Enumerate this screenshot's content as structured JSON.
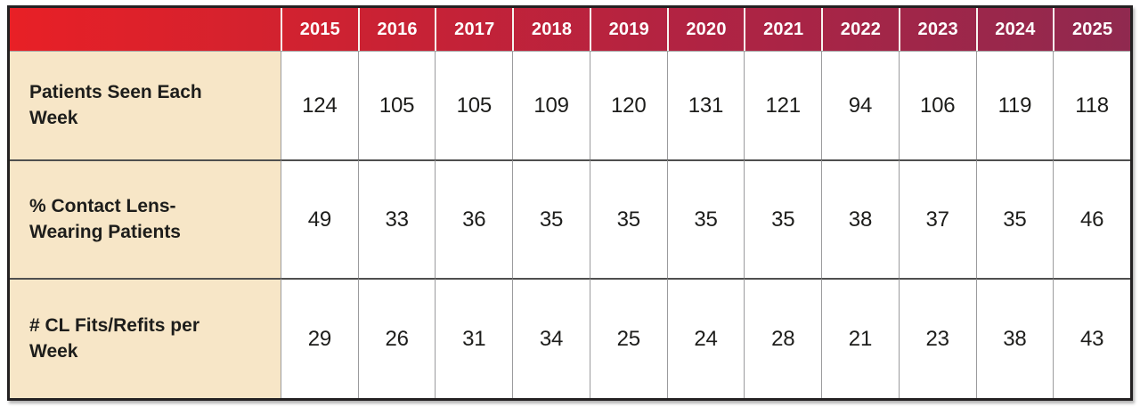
{
  "header": {
    "years": [
      "2015",
      "2016",
      "2017",
      "2018",
      "2019",
      "2020",
      "2021",
      "2022",
      "2023",
      "2024",
      "2025"
    ]
  },
  "rows": [
    {
      "label": "Patients Seen Each Week",
      "values": [
        "124",
        "105",
        "105",
        "109",
        "120",
        "131",
        "121",
        "94",
        "106",
        "119",
        "118"
      ]
    },
    {
      "label": "% Contact Lens-Wearing Patients",
      "values": [
        "49",
        "33",
        "36",
        "35",
        "35",
        "35",
        "35",
        "38",
        "37",
        "35",
        "46"
      ]
    },
    {
      "label": "# CL Fits/Refits per Week",
      "values": [
        "29",
        "26",
        "31",
        "34",
        "25",
        "24",
        "28",
        "21",
        "23",
        "38",
        "43"
      ]
    }
  ],
  "colors": {
    "header_gradient_start": "#e82026",
    "header_gradient_end": "#90294f",
    "header_text": "#ffffff",
    "label_column_bg": "#f7e6c7",
    "row_bg_white": "#ffffff",
    "row_bg_gray": "#e2e2e4",
    "body_text": "#1d1d1b",
    "outer_border": "#242122",
    "row_separator": "#4f4f4f",
    "column_separator": "#9b9b9d"
  },
  "chart_data": {
    "type": "table",
    "categories": [
      "2015",
      "2016",
      "2017",
      "2018",
      "2019",
      "2020",
      "2021",
      "2022",
      "2023",
      "2024",
      "2025"
    ],
    "series": [
      {
        "name": "Patients Seen Each Week",
        "values": [
          124,
          105,
          105,
          109,
          120,
          131,
          121,
          94,
          106,
          119,
          118
        ]
      },
      {
        "name": "% Contact Lens-Wearing Patients",
        "values": [
          49,
          33,
          36,
          35,
          35,
          35,
          35,
          38,
          37,
          35,
          46
        ]
      },
      {
        "name": "# CL Fits/Refits per Week",
        "values": [
          29,
          26,
          31,
          34,
          25,
          24,
          28,
          21,
          23,
          38,
          43
        ]
      }
    ],
    "legend_position": "none",
    "grid": true
  }
}
